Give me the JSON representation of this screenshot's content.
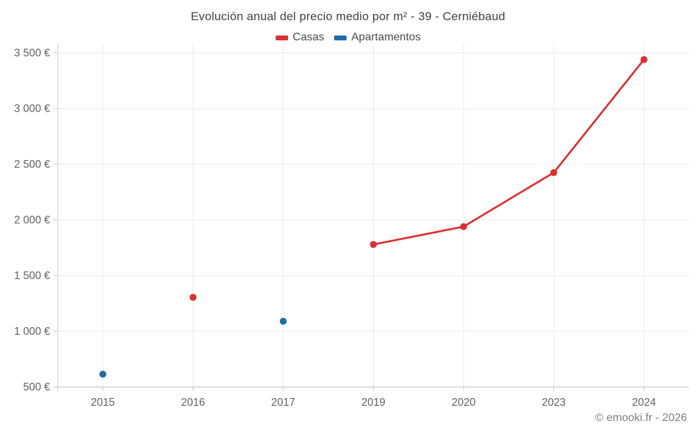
{
  "chart_data": {
    "type": "line",
    "title": "Evolución anual del precio medio por m² - 39 - Cerniébaud",
    "footer": "© emooki.fr - 2026",
    "categories": [
      "2015",
      "2016",
      "2017",
      "2019",
      "2020",
      "2023",
      "2024"
    ],
    "series": [
      {
        "name": "Casas",
        "color": "#d93034",
        "values": [
          null,
          1305,
          null,
          1780,
          1940,
          2425,
          3440
        ]
      },
      {
        "name": "Apartamentos",
        "color": "#1b6ca8",
        "values": [
          615,
          null,
          1090,
          null,
          null,
          null,
          null
        ]
      }
    ],
    "unit": "€",
    "ylim": [
      500,
      3500
    ],
    "y_ticks": [
      500,
      1000,
      1500,
      2000,
      2500,
      3000,
      3500
    ],
    "y_tick_labels": [
      "500 €",
      "1 000 €",
      "1 500 €",
      "2 000 €",
      "2 500 €",
      "3 000 €",
      "3 500 €"
    ],
    "grid": true,
    "legend_position": "top",
    "line_rule": "connect adjacent non-null points only",
    "colors": {
      "gridline": "#eaeaea",
      "axis": "#c9c9c9",
      "bottom_axis": "#bdbdbd",
      "tick_label": "#5f5f5f"
    }
  }
}
